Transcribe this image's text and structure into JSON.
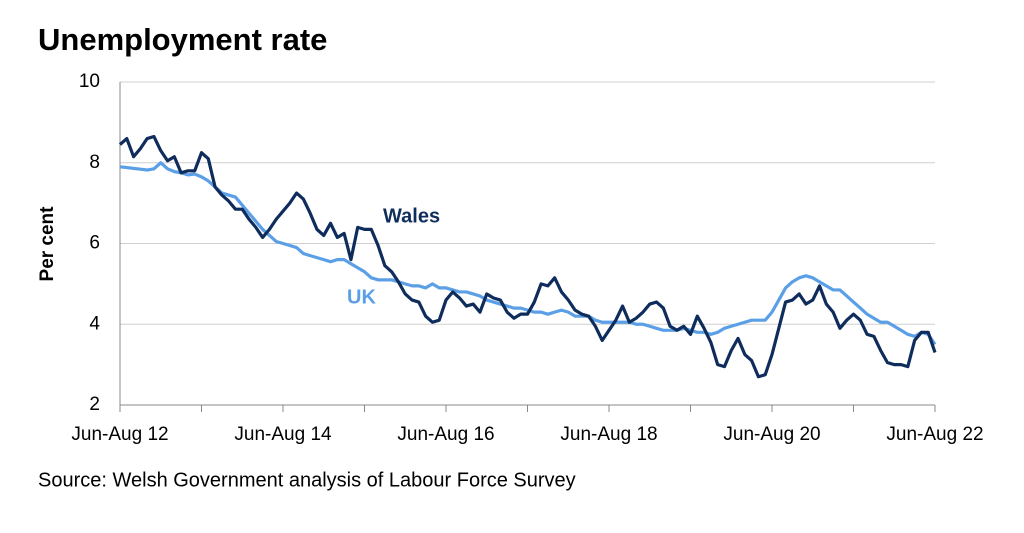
{
  "chart_data": {
    "type": "line",
    "title": "Unemployment rate",
    "y_label": "Per cent",
    "source": "Source: Welsh Government analysis of Labour Force Survey",
    "categories": [
      "Jun-Aug 12",
      null,
      null,
      null,
      null,
      null,
      null,
      null,
      null,
      null,
      null,
      null,
      null,
      null,
      null,
      null,
      null,
      null,
      null,
      null,
      null,
      null,
      null,
      null,
      "Jun-Aug 14",
      null,
      null,
      null,
      null,
      null,
      null,
      null,
      null,
      null,
      null,
      null,
      null,
      null,
      null,
      null,
      null,
      null,
      null,
      null,
      null,
      null,
      null,
      null,
      "Jun-Aug 16",
      null,
      null,
      null,
      null,
      null,
      null,
      null,
      null,
      null,
      null,
      null,
      null,
      null,
      null,
      null,
      null,
      null,
      null,
      null,
      null,
      null,
      null,
      null,
      "Jun-Aug 18",
      null,
      null,
      null,
      null,
      null,
      null,
      null,
      null,
      null,
      null,
      null,
      null,
      null,
      null,
      null,
      null,
      null,
      null,
      null,
      null,
      null,
      null,
      null,
      "Jun-Aug 20",
      null,
      null,
      null,
      null,
      null,
      null,
      null,
      null,
      null,
      null,
      null,
      null,
      null,
      null,
      null,
      null,
      null,
      null,
      null,
      null,
      null,
      null,
      null,
      "Jun-Aug 22"
    ],
    "series": [
      {
        "name": "Wales",
        "color": "#0f2d5c",
        "values": [
          8.45,
          8.6,
          8.15,
          8.35,
          8.6,
          8.65,
          8.3,
          8.05,
          8.15,
          7.75,
          7.8,
          7.8,
          8.25,
          8.1,
          7.4,
          7.2,
          7.05,
          6.85,
          6.85,
          6.6,
          6.4,
          6.15,
          6.35,
          6.6,
          6.8,
          7.0,
          7.25,
          7.1,
          6.75,
          6.35,
          6.2,
          6.5,
          6.15,
          6.25,
          5.6,
          6.4,
          6.35,
          6.35,
          5.95,
          5.45,
          5.3,
          5.05,
          4.75,
          4.6,
          4.55,
          4.2,
          4.05,
          4.1,
          4.6,
          4.8,
          4.65,
          4.45,
          4.5,
          4.3,
          4.75,
          4.65,
          4.6,
          4.3,
          4.15,
          4.25,
          4.25,
          4.55,
          5.0,
          4.95,
          5.15,
          4.8,
          4.6,
          4.35,
          4.25,
          4.2,
          3.95,
          3.6,
          3.85,
          4.1,
          4.45,
          4.05,
          4.15,
          4.3,
          4.5,
          4.55,
          4.4,
          3.95,
          3.85,
          3.95,
          3.75,
          4.2,
          3.9,
          3.55,
          3.0,
          2.95,
          3.35,
          3.65,
          3.25,
          3.1,
          2.7,
          2.75,
          3.25,
          3.9,
          4.55,
          4.6,
          4.75,
          4.5,
          4.6,
          4.95,
          4.5,
          4.3,
          3.9,
          4.1,
          4.25,
          4.1,
          3.75,
          3.7,
          3.35,
          3.05,
          3.0,
          3.0,
          2.95,
          3.6,
          3.8,
          3.8,
          3.3
        ]
      },
      {
        "name": "UK",
        "color": "#5b9fe6",
        "values": [
          7.9,
          7.88,
          7.86,
          7.84,
          7.82,
          7.85,
          8.0,
          7.85,
          7.78,
          7.75,
          7.7,
          7.72,
          7.65,
          7.55,
          7.4,
          7.25,
          7.2,
          7.15,
          6.95,
          6.75,
          6.55,
          6.35,
          6.2,
          6.05,
          6.0,
          5.95,
          5.9,
          5.75,
          5.7,
          5.65,
          5.6,
          5.55,
          5.6,
          5.6,
          5.5,
          5.4,
          5.3,
          5.15,
          5.1,
          5.1,
          5.1,
          5.05,
          5.0,
          4.95,
          4.95,
          4.9,
          5.0,
          4.9,
          4.9,
          4.85,
          4.8,
          4.8,
          4.75,
          4.7,
          4.6,
          4.55,
          4.5,
          4.45,
          4.4,
          4.4,
          4.35,
          4.3,
          4.3,
          4.25,
          4.3,
          4.35,
          4.3,
          4.2,
          4.2,
          4.2,
          4.1,
          4.05,
          4.05,
          4.05,
          4.05,
          4.05,
          4.0,
          4.0,
          3.95,
          3.9,
          3.85,
          3.85,
          3.85,
          3.9,
          3.85,
          3.8,
          3.8,
          3.75,
          3.8,
          3.9,
          3.95,
          4.0,
          4.05,
          4.1,
          4.1,
          4.1,
          4.3,
          4.6,
          4.9,
          5.05,
          5.15,
          5.2,
          5.15,
          5.05,
          4.95,
          4.85,
          4.85,
          4.7,
          4.55,
          4.4,
          4.25,
          4.15,
          4.05,
          4.05,
          3.95,
          3.85,
          3.75,
          3.7,
          3.8,
          3.75,
          3.5
        ]
      }
    ],
    "ylim": [
      2,
      10
    ],
    "yticks": [
      2,
      4,
      6,
      8,
      10
    ],
    "grid": true
  }
}
